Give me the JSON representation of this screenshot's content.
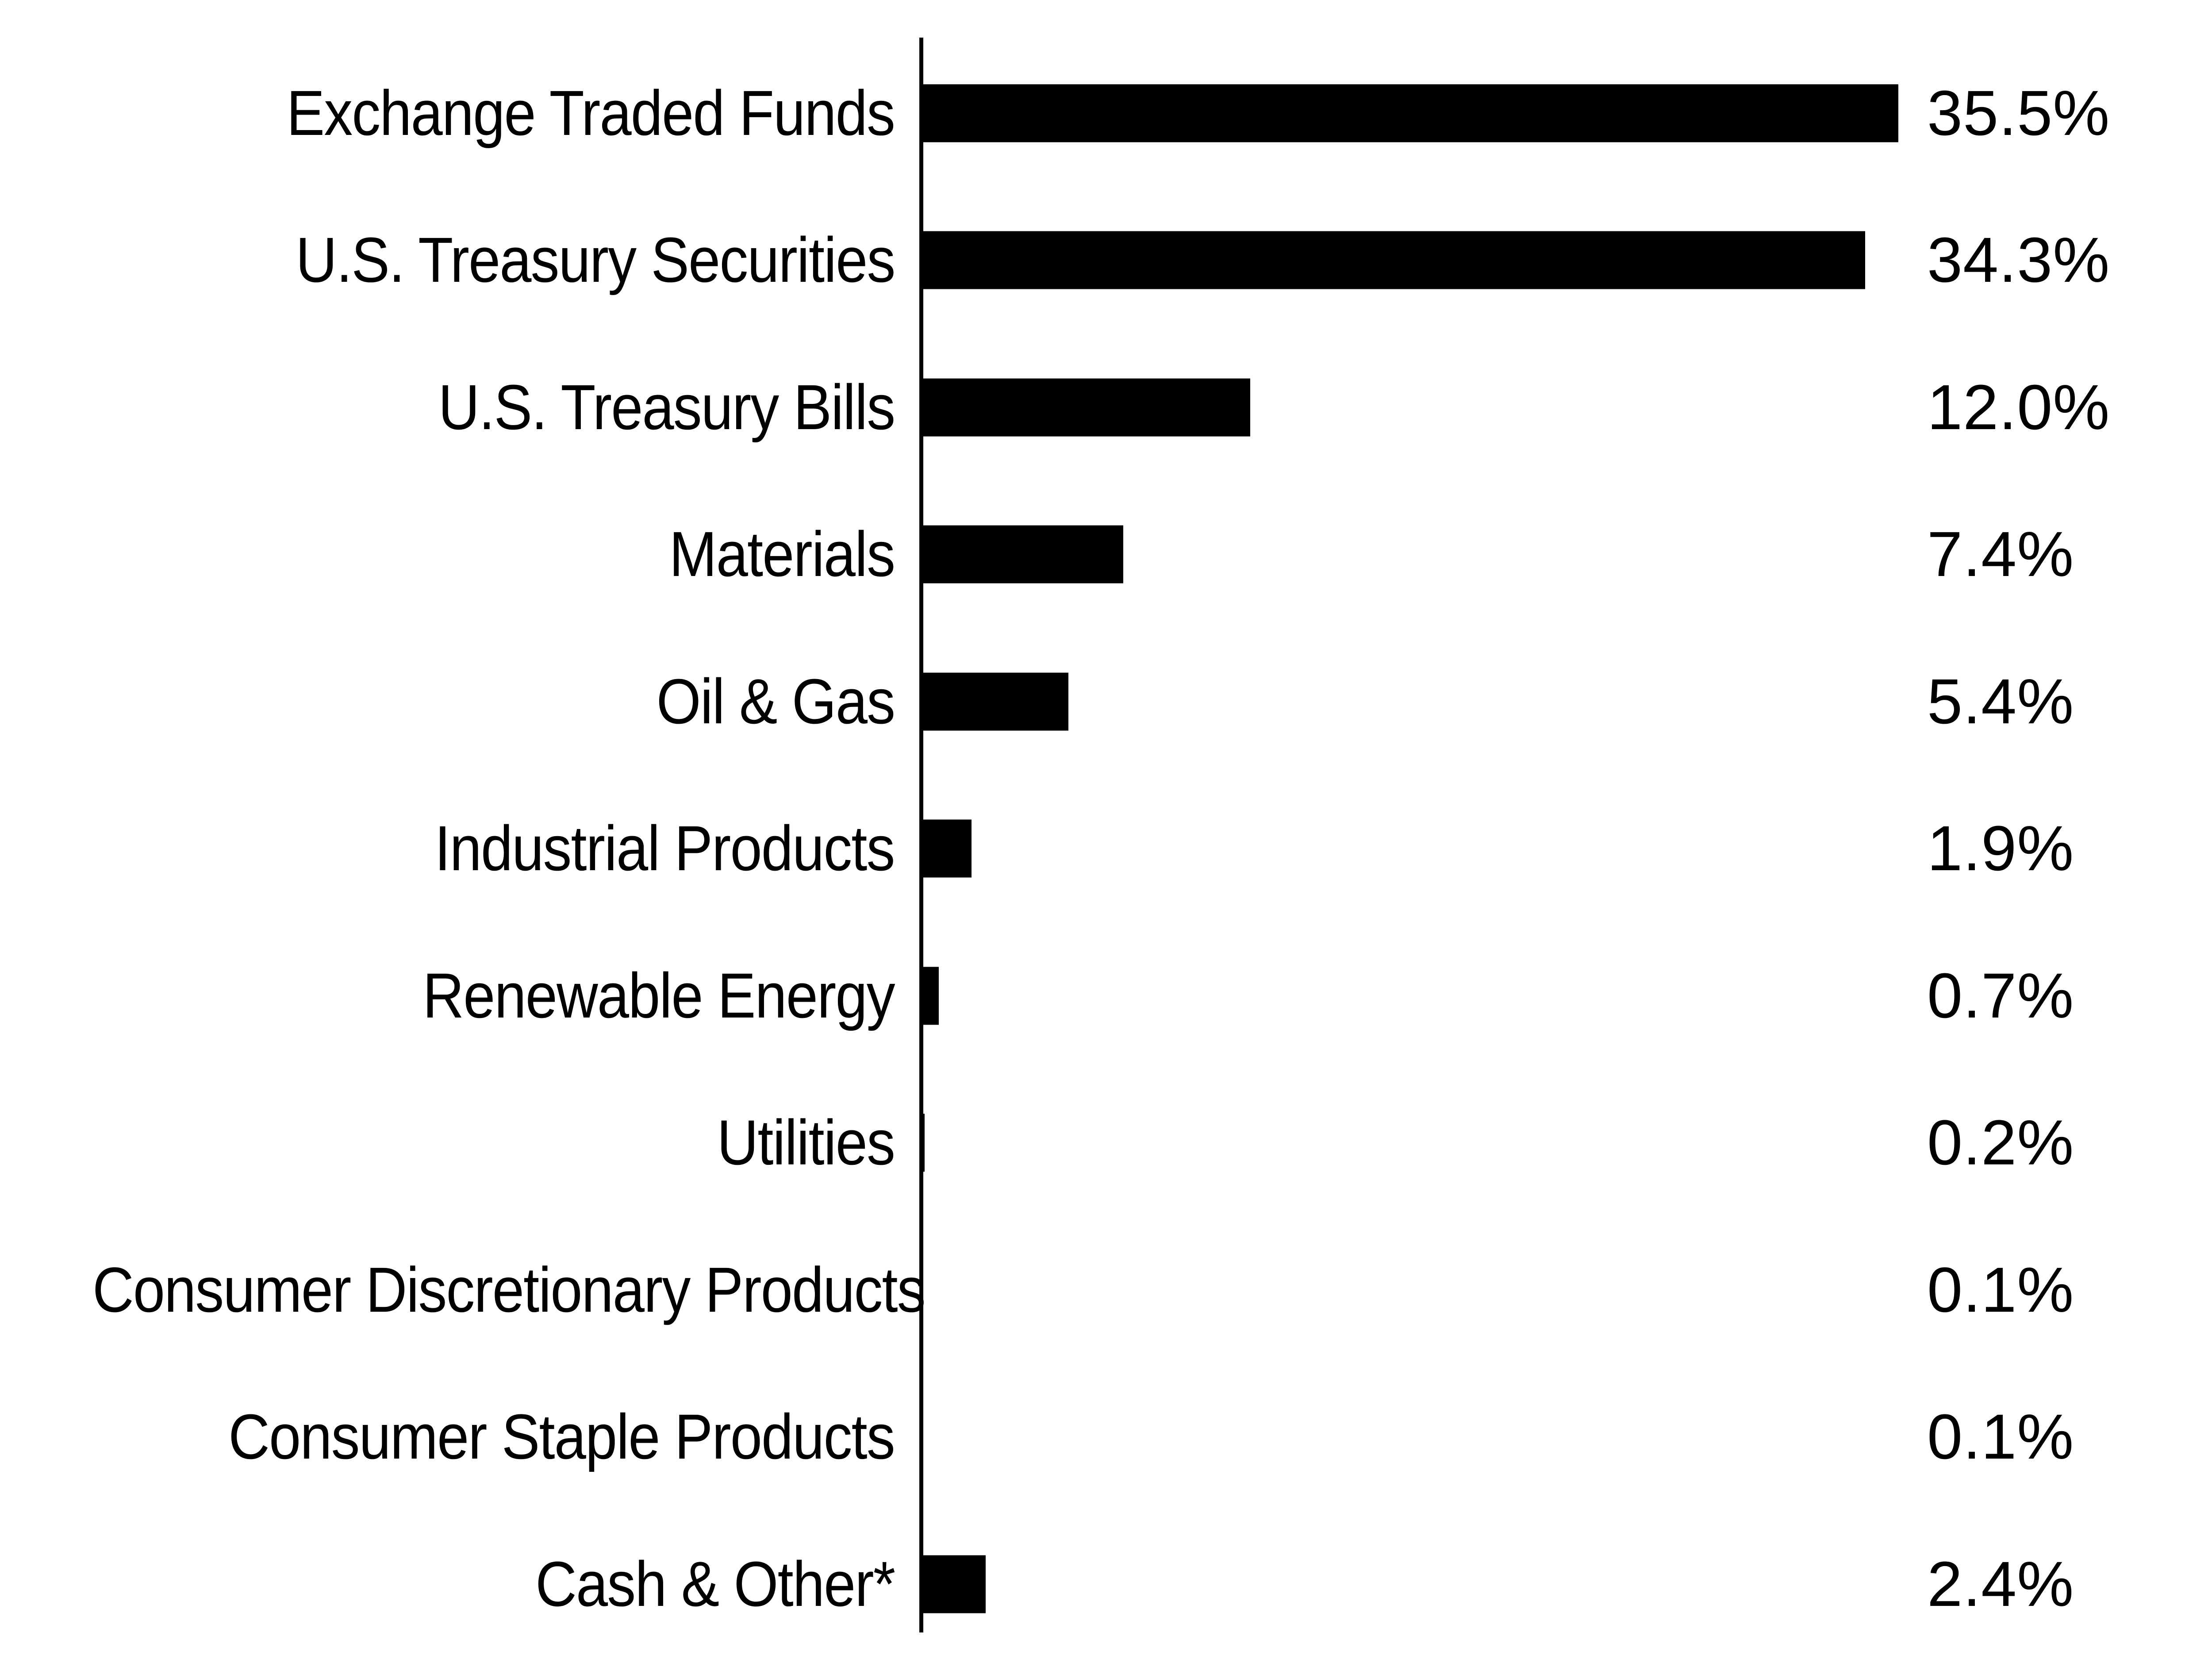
{
  "chart_data": {
    "type": "bar",
    "orientation": "horizontal",
    "title": "",
    "categories": [
      "Exchange Traded Funds",
      "U.S. Treasury Securities",
      "U.S. Treasury Bills",
      "Materials",
      "Oil & Gas",
      "Industrial Products",
      "Renewable Energy",
      "Utilities",
      "Consumer Discretionary Products",
      "Consumer Staple Products",
      "Cash & Other*"
    ],
    "values": [
      35.5,
      34.3,
      12.0,
      7.4,
      5.4,
      1.9,
      0.7,
      0.2,
      0.1,
      0.1,
      2.4
    ],
    "value_labels": [
      "35.5%",
      "34.3%",
      "12.0%",
      "7.4%",
      "5.4%",
      "1.9%",
      "0.7%",
      "0.2%",
      "0.1%",
      "0.1%",
      "2.4%"
    ],
    "xlim": [
      0,
      35.5
    ],
    "grid": "off",
    "legend": "none",
    "bar_color": "#000000",
    "axis_color": "#000000",
    "text_color": "#000000",
    "background_color": "#ffffff"
  }
}
